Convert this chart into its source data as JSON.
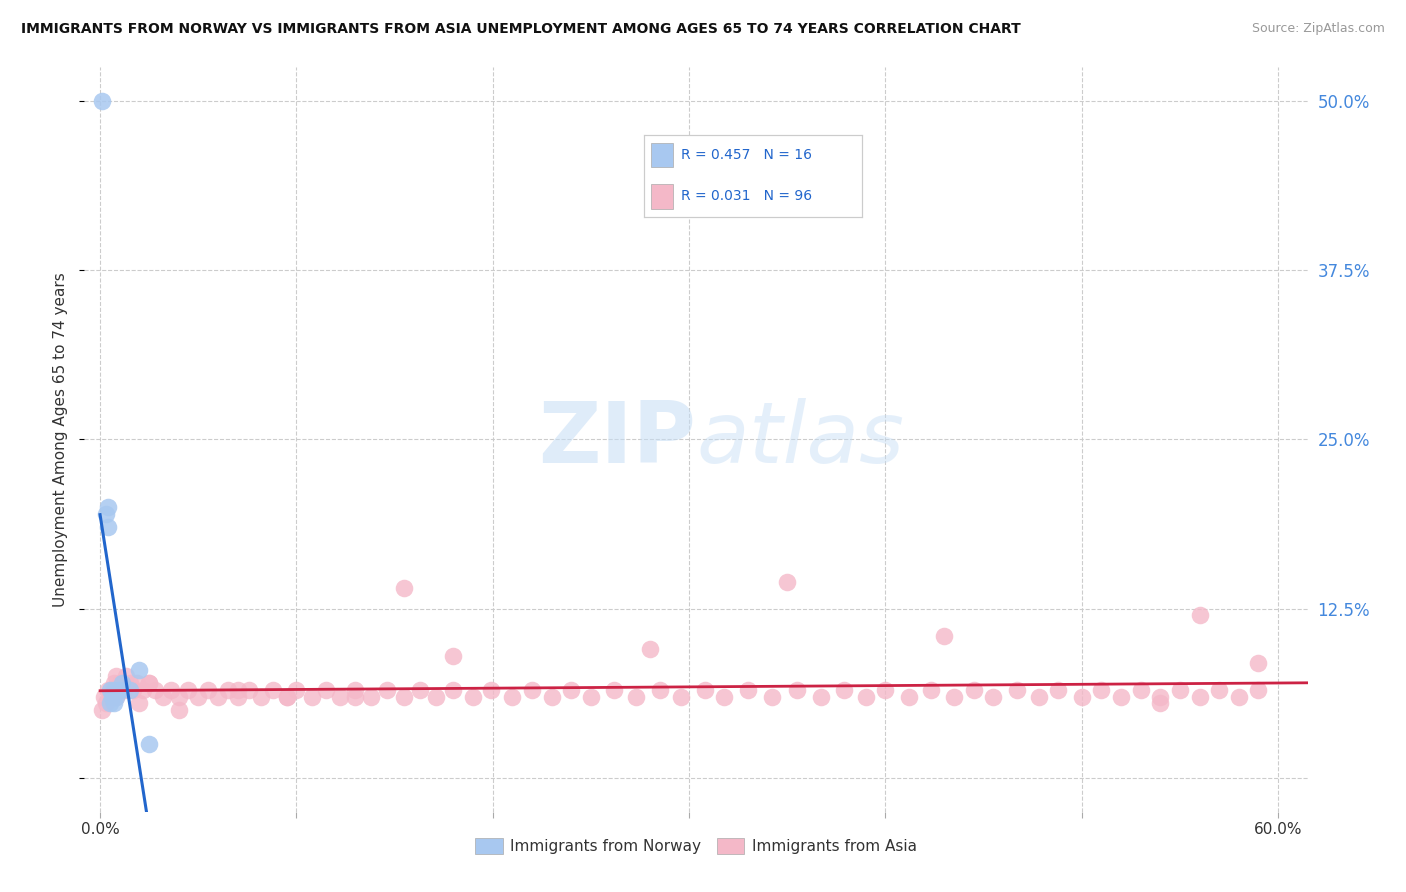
{
  "title": "IMMIGRANTS FROM NORWAY VS IMMIGRANTS FROM ASIA UNEMPLOYMENT AMONG AGES 65 TO 74 YEARS CORRELATION CHART",
  "source": "Source: ZipAtlas.com",
  "ylabel": "Unemployment Among Ages 65 to 74 years",
  "xlim": [
    -0.008,
    0.615
  ],
  "ylim": [
    -0.025,
    0.525
  ],
  "norway_color": "#a8c8f0",
  "norway_line_color": "#2266cc",
  "asia_color": "#f4b8c8",
  "asia_line_color": "#cc2244",
  "watermark_zip": "ZIP",
  "watermark_atlas": "atlas",
  "background_color": "#ffffff",
  "grid_color": "#cccccc",
  "right_tick_color": "#4488dd",
  "legend_R_color": "#2266cc",
  "norway_x": [
    0.001,
    0.003,
    0.004,
    0.004,
    0.005,
    0.005,
    0.006,
    0.007,
    0.007,
    0.008,
    0.009,
    0.01,
    0.011,
    0.015,
    0.02,
    0.025
  ],
  "norway_y": [
    0.5,
    0.195,
    0.2,
    0.185,
    0.055,
    0.065,
    0.06,
    0.055,
    0.065,
    0.06,
    0.065,
    0.065,
    0.07,
    0.065,
    0.08,
    0.025
  ],
  "asia_x": [
    0.001,
    0.002,
    0.003,
    0.004,
    0.005,
    0.006,
    0.007,
    0.008,
    0.009,
    0.01,
    0.011,
    0.013,
    0.015,
    0.017,
    0.019,
    0.022,
    0.025,
    0.028,
    0.032,
    0.036,
    0.04,
    0.045,
    0.05,
    0.055,
    0.06,
    0.065,
    0.07,
    0.076,
    0.082,
    0.088,
    0.095,
    0.1,
    0.108,
    0.115,
    0.122,
    0.13,
    0.138,
    0.146,
    0.155,
    0.163,
    0.171,
    0.18,
    0.19,
    0.199,
    0.21,
    0.22,
    0.23,
    0.24,
    0.25,
    0.262,
    0.273,
    0.285,
    0.296,
    0.308,
    0.318,
    0.33,
    0.342,
    0.355,
    0.367,
    0.379,
    0.39,
    0.4,
    0.412,
    0.423,
    0.435,
    0.445,
    0.455,
    0.467,
    0.478,
    0.488,
    0.5,
    0.51,
    0.52,
    0.53,
    0.54,
    0.55,
    0.56,
    0.57,
    0.58,
    0.59,
    0.155,
    0.28,
    0.35,
    0.43,
    0.54,
    0.59,
    0.56,
    0.18,
    0.095,
    0.04,
    0.02,
    0.008,
    0.012,
    0.025,
    0.07,
    0.13
  ],
  "asia_y": [
    0.05,
    0.06,
    0.055,
    0.065,
    0.06,
    0.065,
    0.07,
    0.075,
    0.065,
    0.07,
    0.065,
    0.075,
    0.07,
    0.065,
    0.07,
    0.065,
    0.07,
    0.065,
    0.06,
    0.065,
    0.06,
    0.065,
    0.06,
    0.065,
    0.06,
    0.065,
    0.06,
    0.065,
    0.06,
    0.065,
    0.06,
    0.065,
    0.06,
    0.065,
    0.06,
    0.065,
    0.06,
    0.065,
    0.06,
    0.065,
    0.06,
    0.065,
    0.06,
    0.065,
    0.06,
    0.065,
    0.06,
    0.065,
    0.06,
    0.065,
    0.06,
    0.065,
    0.06,
    0.065,
    0.06,
    0.065,
    0.06,
    0.065,
    0.06,
    0.065,
    0.06,
    0.065,
    0.06,
    0.065,
    0.06,
    0.065,
    0.06,
    0.065,
    0.06,
    0.065,
    0.06,
    0.065,
    0.06,
    0.065,
    0.06,
    0.065,
    0.06,
    0.065,
    0.06,
    0.065,
    0.14,
    0.095,
    0.145,
    0.105,
    0.055,
    0.085,
    0.12,
    0.09,
    0.06,
    0.05,
    0.055,
    0.06,
    0.065,
    0.07,
    0.065,
    0.06
  ]
}
